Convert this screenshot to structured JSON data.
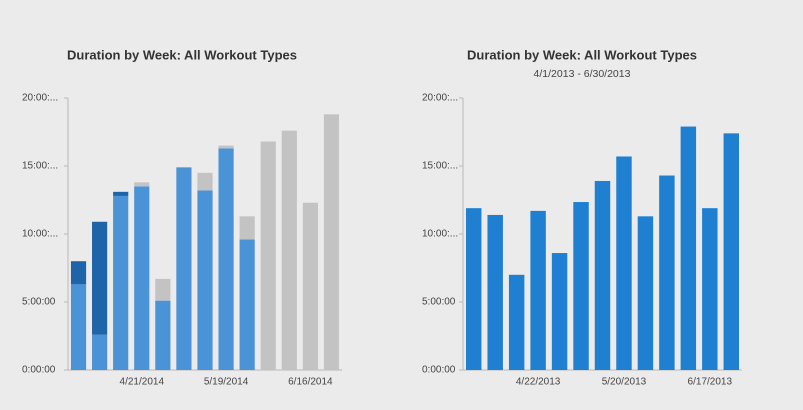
{
  "chart_data": [
    {
      "type": "bar",
      "title": "Duration by Week: All Workout Types",
      "stacked": true,
      "categories": [
        null,
        null,
        null,
        "4/21/2014",
        null,
        null,
        null,
        "5/19/2014",
        null,
        null,
        null,
        "6/16/2014",
        null
      ],
      "series": [
        {
          "color": "#4a93d6",
          "values": [
            6.3,
            2.6,
            12.8,
            13.5,
            5.1,
            14.9,
            13.2,
            16.3,
            9.6,
            0,
            0,
            0,
            0
          ]
        },
        {
          "color": "#1d64a8",
          "values": [
            1.7,
            8.3,
            0.3,
            0,
            0,
            0,
            0,
            0,
            0,
            0,
            0,
            0,
            0
          ]
        },
        {
          "color": "#c3c3c3",
          "values": [
            0,
            0,
            0,
            0.3,
            1.6,
            0,
            1.3,
            0.2,
            1.7,
            16.8,
            17.6,
            12.3,
            18.8
          ]
        }
      ],
      "ylim": [
        0,
        20
      ],
      "yticks": [
        {
          "value": 0,
          "label": "0:00:00"
        },
        {
          "value": 5,
          "label": "5:00:00"
        },
        {
          "value": 10,
          "label": "10:00:..."
        },
        {
          "value": 15,
          "label": "15:00:..."
        },
        {
          "value": 20,
          "label": "20:00:..."
        }
      ]
    },
    {
      "type": "bar",
      "title": "Duration by Week: All Workout Types",
      "subtitle": "4/1/2013 - 6/30/2013",
      "categories": [
        null,
        null,
        null,
        "4/22/2013",
        null,
        null,
        null,
        "5/20/2013",
        null,
        null,
        null,
        "6/17/2013",
        null
      ],
      "values": [
        11.9,
        11.4,
        7.0,
        11.7,
        8.6,
        12.35,
        13.9,
        15.7,
        11.3,
        14.3,
        17.9,
        11.9,
        17.4
      ],
      "color": "#1f80d2",
      "ylim": [
        0,
        20
      ],
      "yticks": [
        {
          "value": 0,
          "label": "0:00:00"
        },
        {
          "value": 5,
          "label": "5:00:00"
        },
        {
          "value": 10,
          "label": "10:00:..."
        },
        {
          "value": 15,
          "label": "15:00:..."
        },
        {
          "value": 20,
          "label": "20:00:..."
        }
      ]
    }
  ]
}
